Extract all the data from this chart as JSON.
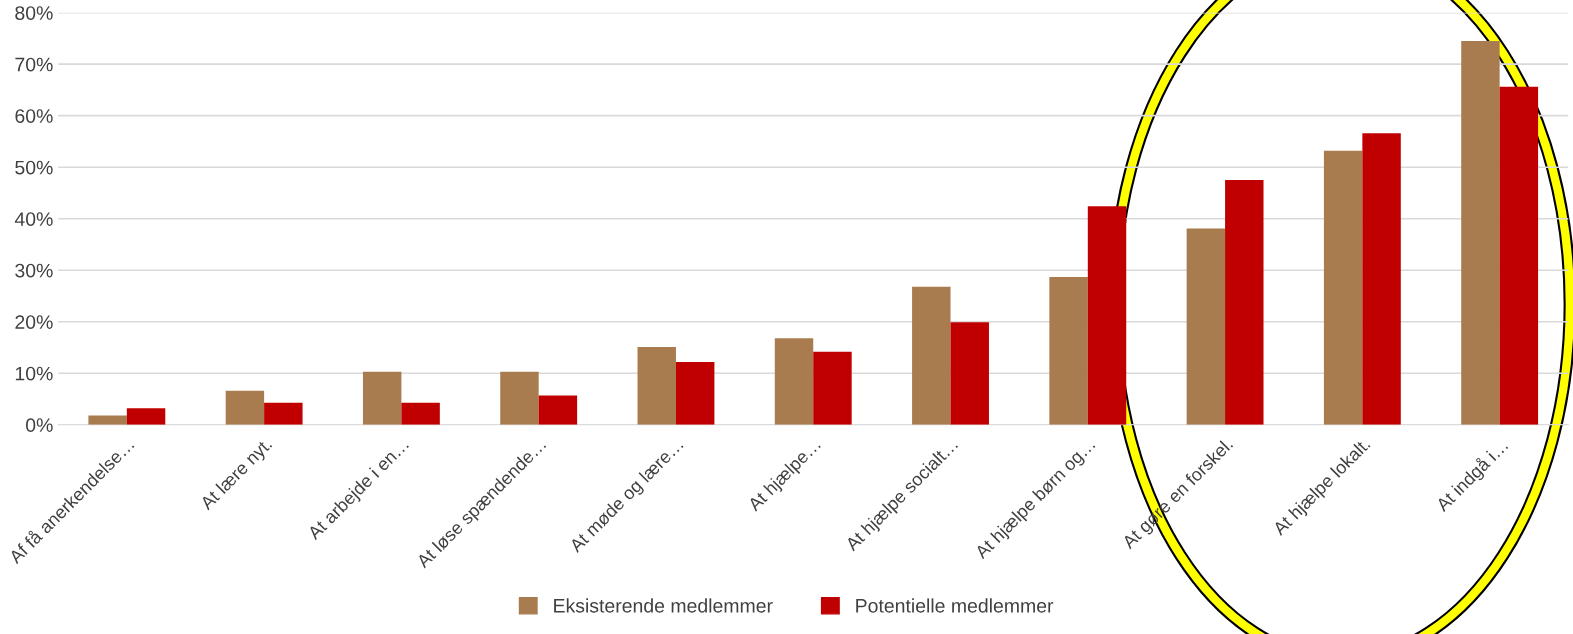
{
  "chart_data": {
    "type": "bar",
    "categories": [
      "Af få anerkendelse…",
      "At lære nyt.",
      "At arbejde i en…",
      "At løse spændende…",
      "At møde og lære…",
      "At hjælpe…",
      "At hjælpe socialt…",
      "At hjælpe børn og…",
      "At gøre en forskel.",
      "At hjælpe lokalt.",
      "At indgå i…"
    ],
    "series": [
      {
        "name": "Eksisterende medlemmer",
        "color": "#a97c50",
        "values": [
          1.8,
          6.6,
          10.3,
          10.3,
          15.1,
          16.8,
          26.8,
          28.7,
          38.1,
          53.2,
          74.5
        ]
      },
      {
        "name": "Potentielle medlemmer",
        "color": "#c00000",
        "values": [
          3.2,
          4.3,
          4.3,
          5.7,
          12.2,
          14.2,
          19.9,
          42.4,
          47.5,
          56.6,
          65.6
        ]
      }
    ],
    "ylim": [
      0,
      80
    ],
    "yticks": [
      {
        "value": 0,
        "label": "0%"
      },
      {
        "value": 10,
        "label": "10%"
      },
      {
        "value": 20,
        "label": "20%"
      },
      {
        "value": 30,
        "label": "30%"
      },
      {
        "value": 40,
        "label": "40%"
      },
      {
        "value": 50,
        "label": "50%"
      },
      {
        "value": 60,
        "label": "60%"
      },
      {
        "value": 70,
        "label": "70%"
      },
      {
        "value": 80,
        "label": "80%"
      }
    ],
    "grid": "y",
    "legend": "bottom"
  }
}
